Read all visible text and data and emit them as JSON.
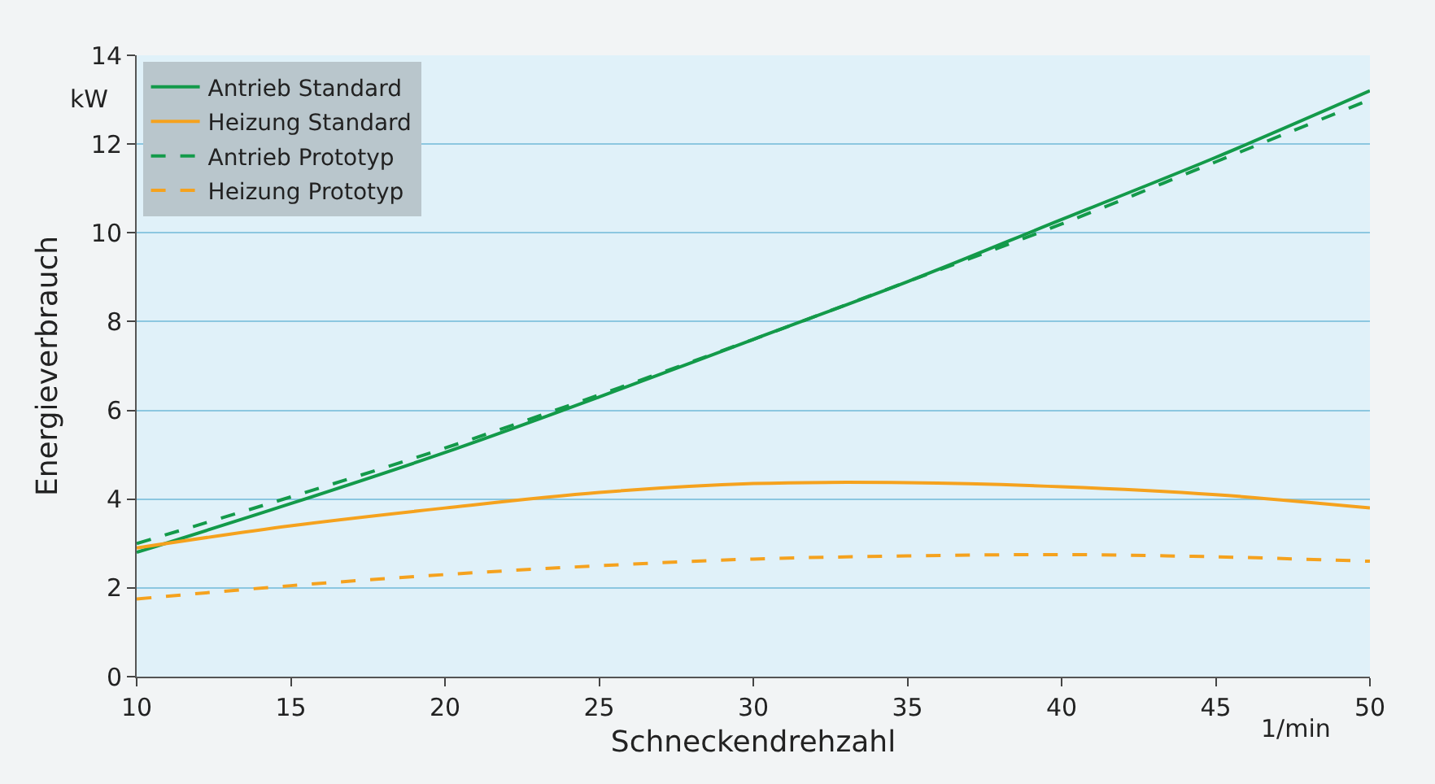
{
  "chart_data": {
    "type": "line",
    "xlabel": "Schneckendrehzahl",
    "ylabel": "Energieverbrauch",
    "annotations": [
      "kW",
      "1/min"
    ],
    "x": [
      10,
      15,
      20,
      25,
      30,
      35,
      40,
      45,
      50
    ],
    "xlim": [
      10,
      50
    ],
    "xticks": [
      10,
      15,
      20,
      25,
      30,
      35,
      40,
      45,
      50
    ],
    "ylim": [
      0,
      14
    ],
    "yticks": [
      0,
      2,
      4,
      6,
      8,
      10,
      12,
      14
    ],
    "grid": "y",
    "legend": "top left",
    "series": [
      {
        "name": "Antrieb Standard",
        "color": "#139a4a",
        "line_style": "solid",
        "values": [
          2.8,
          3.9,
          5.05,
          6.3,
          7.6,
          8.9,
          10.3,
          11.7,
          13.2
        ]
      },
      {
        "name": "Heizung Standard",
        "color": "#f5a21e",
        "line_style": "solid",
        "values": [
          2.9,
          3.4,
          3.8,
          4.15,
          4.35,
          4.37,
          4.28,
          4.1,
          3.8
        ]
      },
      {
        "name": "Antrieb Prototyp",
        "color": "#139a4a",
        "line_style": "dashed",
        "values": [
          3.0,
          4.05,
          5.15,
          6.35,
          7.6,
          8.9,
          10.2,
          11.6,
          13.0
        ]
      },
      {
        "name": "Heizung Prototyp",
        "color": "#f5a21e",
        "line_style": "dashed",
        "values": [
          1.75,
          2.05,
          2.3,
          2.5,
          2.65,
          2.72,
          2.75,
          2.7,
          2.6
        ]
      }
    ]
  }
}
